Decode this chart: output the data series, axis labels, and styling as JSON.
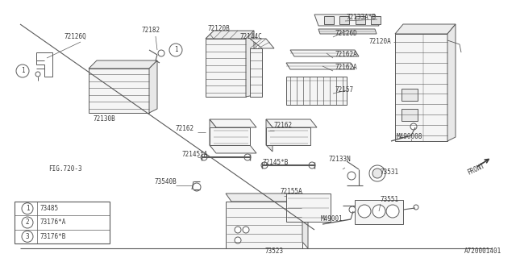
{
  "bg_color": "#ffffff",
  "line_color": "#5a5a5a",
  "text_color": "#3a3a3a",
  "diagram_id": "A720001401",
  "fig_ref": "FIG.720-3",
  "legend_items": [
    {
      "num": "1",
      "label": "73485"
    },
    {
      "num": "2",
      "label": "73176*A"
    },
    {
      "num": "3",
      "label": "73176*B"
    }
  ]
}
